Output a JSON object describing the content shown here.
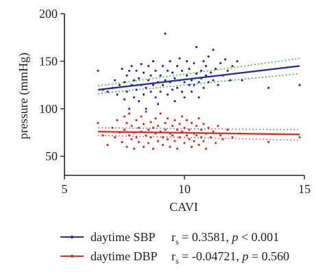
{
  "chart_data": {
    "type": "scatter",
    "xlabel": "CAVI",
    "ylabel": "pressure (mmHg)",
    "xlim": [
      5,
      15
    ],
    "ylim": [
      30,
      200
    ],
    "x_ticks": [
      "5",
      "10",
      "15"
    ],
    "y_ticks": [
      "50",
      "100",
      "150",
      "200"
    ],
    "x_tick_values": [
      5,
      10,
      15
    ],
    "y_tick_values": [
      50,
      100,
      150,
      200
    ],
    "grid": false,
    "legend_position": "bottom",
    "series": [
      {
        "name": "daytime SBP",
        "color": "#2b2ba0",
        "stat_r": "r",
        "stat_sub": "s",
        "stat_value": " = 0.3581, ",
        "stat_p": "p",
        "stat_p_value": " < 0.001",
        "fit": {
          "x": [
            6.4,
            14.8
          ],
          "y": [
            120,
            145
          ]
        },
        "ci_upper": {
          "x": [
            6.4,
            14.8
          ],
          "y": [
            124,
            153
          ]
        },
        "ci_lower": {
          "x": [
            6.4,
            14.8
          ],
          "y": [
            116,
            137
          ]
        },
        "points": [
          [
            6.4,
            140
          ],
          [
            6.6,
            120
          ],
          [
            6.8,
            118
          ],
          [
            7.0,
            122
          ],
          [
            7.1,
            130
          ],
          [
            7.2,
            115
          ],
          [
            7.3,
            125
          ],
          [
            7.4,
            142
          ],
          [
            7.5,
            110
          ],
          [
            7.5,
            128
          ],
          [
            7.6,
            135
          ],
          [
            7.6,
            118
          ],
          [
            7.7,
            140
          ],
          [
            7.7,
            100
          ],
          [
            7.8,
            125
          ],
          [
            7.8,
            145
          ],
          [
            7.9,
            112
          ],
          [
            7.9,
            130
          ],
          [
            8.0,
            120
          ],
          [
            8.0,
            140
          ],
          [
            8.1,
            108
          ],
          [
            8.1,
            132
          ],
          [
            8.2,
            125
          ],
          [
            8.2,
            147
          ],
          [
            8.3,
            115
          ],
          [
            8.3,
            138
          ],
          [
            8.4,
            122
          ],
          [
            8.4,
            100
          ],
          [
            8.5,
            130
          ],
          [
            8.5,
            145
          ],
          [
            8.6,
            118
          ],
          [
            8.6,
            135
          ],
          [
            8.7,
            125
          ],
          [
            8.7,
            150
          ],
          [
            8.8,
            112
          ],
          [
            8.8,
            140
          ],
          [
            8.9,
            128
          ],
          [
            8.9,
            105
          ],
          [
            9.0,
            135
          ],
          [
            9.0,
            118
          ],
          [
            9.1,
            145
          ],
          [
            9.1,
            125
          ],
          [
            9.2,
            179
          ],
          [
            9.2,
            130
          ],
          [
            9.3,
            140
          ],
          [
            9.3,
            115
          ],
          [
            9.4,
            128
          ],
          [
            9.4,
            150
          ],
          [
            9.5,
            120
          ],
          [
            9.5,
            138
          ],
          [
            9.6,
            108
          ],
          [
            9.6,
            132
          ],
          [
            9.7,
            145
          ],
          [
            9.7,
            122
          ],
          [
            9.8,
            130
          ],
          [
            9.8,
            153
          ],
          [
            9.9,
            118
          ],
          [
            9.9,
            140
          ],
          [
            10.0,
            128
          ],
          [
            10.0,
            112
          ],
          [
            10.1,
            135
          ],
          [
            10.1,
            150
          ],
          [
            10.2,
            125
          ],
          [
            10.2,
            142
          ],
          [
            10.3,
            130
          ],
          [
            10.3,
            118
          ],
          [
            10.4,
            148
          ],
          [
            10.4,
            125
          ],
          [
            10.5,
            137
          ],
          [
            10.5,
            165
          ],
          [
            10.6,
            128
          ],
          [
            10.6,
            112
          ],
          [
            10.7,
            140
          ],
          [
            10.7,
            132
          ],
          [
            10.8,
            150
          ],
          [
            10.8,
            122
          ],
          [
            10.9,
            135
          ],
          [
            10.9,
            145
          ],
          [
            11.0,
            128
          ],
          [
            11.0,
            155
          ],
          [
            11.1,
            138
          ],
          [
            11.2,
            130
          ],
          [
            11.2,
            162
          ],
          [
            11.3,
            142
          ],
          [
            11.4,
            125
          ],
          [
            11.5,
            148
          ],
          [
            11.6,
            135
          ],
          [
            11.7,
            152
          ],
          [
            11.8,
            140
          ],
          [
            11.9,
            130
          ],
          [
            12.0,
            145
          ],
          [
            12.2,
            150
          ],
          [
            12.4,
            130
          ],
          [
            13.5,
            122
          ],
          [
            14.8,
            125
          ]
        ]
      },
      {
        "name": "daytime DBP",
        "color": "#d4331f",
        "stat_r": "r",
        "stat_sub": "s",
        "stat_value": " = -0.04721, ",
        "stat_p": "p",
        "stat_p_value": " = 0.560",
        "fit": {
          "x": [
            6.4,
            14.8
          ],
          "y": [
            76,
            73
          ]
        },
        "ci_upper": {
          "x": [
            6.4,
            14.8
          ],
          "y": [
            80,
            78
          ]
        },
        "ci_lower": {
          "x": [
            6.4,
            14.8
          ],
          "y": [
            72,
            67
          ]
        },
        "points": [
          [
            6.4,
            85
          ],
          [
            6.6,
            72
          ],
          [
            6.8,
            62
          ],
          [
            7.0,
            80
          ],
          [
            7.1,
            70
          ],
          [
            7.2,
            88
          ],
          [
            7.3,
            75
          ],
          [
            7.4,
            65
          ],
          [
            7.5,
            92
          ],
          [
            7.5,
            78
          ],
          [
            7.6,
            60
          ],
          [
            7.6,
            85
          ],
          [
            7.7,
            72
          ],
          [
            7.7,
            95
          ],
          [
            7.8,
            68
          ],
          [
            7.8,
            82
          ],
          [
            7.9,
            75
          ],
          [
            7.9,
            58
          ],
          [
            8.0,
            88
          ],
          [
            8.0,
            70
          ],
          [
            8.1,
            80
          ],
          [
            8.1,
            65
          ],
          [
            8.2,
            92
          ],
          [
            8.2,
            76
          ],
          [
            8.3,
            60
          ],
          [
            8.3,
            84
          ],
          [
            8.4,
            72
          ],
          [
            8.4,
            97
          ],
          [
            8.5,
            78
          ],
          [
            8.5,
            64
          ],
          [
            8.6,
            86
          ],
          [
            8.6,
            70
          ],
          [
            8.7,
            80
          ],
          [
            8.7,
            58
          ],
          [
            8.8,
            90
          ],
          [
            8.8,
            74
          ],
          [
            8.9,
            66
          ],
          [
            8.9,
            82
          ],
          [
            9.0,
            76
          ],
          [
            9.0,
            95
          ],
          [
            9.1,
            70
          ],
          [
            9.1,
            62
          ],
          [
            9.2,
            85
          ],
          [
            9.2,
            78
          ],
          [
            9.3,
            68
          ],
          [
            9.3,
            90
          ],
          [
            9.4,
            74
          ],
          [
            9.4,
            60
          ],
          [
            9.5,
            82
          ],
          [
            9.5,
            72
          ],
          [
            9.6,
            88
          ],
          [
            9.6,
            66
          ],
          [
            9.7,
            78
          ],
          [
            9.7,
            58
          ],
          [
            9.8,
            84
          ],
          [
            9.8,
            70
          ],
          [
            9.9,
            92
          ],
          [
            9.9,
            76
          ],
          [
            10.0,
            64
          ],
          [
            10.0,
            80
          ],
          [
            10.1,
            72
          ],
          [
            10.1,
            88
          ],
          [
            10.2,
            68
          ],
          [
            10.2,
            78
          ],
          [
            10.3,
            60
          ],
          [
            10.3,
            85
          ],
          [
            10.4,
            74
          ],
          [
            10.4,
            66
          ],
          [
            10.5,
            82
          ],
          [
            10.5,
            72
          ],
          [
            10.6,
            90
          ],
          [
            10.6,
            62
          ],
          [
            10.7,
            78
          ],
          [
            10.7,
            70
          ],
          [
            10.8,
            84
          ],
          [
            10.8,
            66
          ],
          [
            10.9,
            74
          ],
          [
            10.9,
            58
          ],
          [
            11.0,
            80
          ],
          [
            11.1,
            70
          ],
          [
            11.2,
            76
          ],
          [
            11.3,
            64
          ],
          [
            11.4,
            82
          ],
          [
            11.5,
            72
          ],
          [
            11.6,
            68
          ],
          [
            11.8,
            78
          ],
          [
            12.0,
            70
          ],
          [
            12.3,
            74
          ],
          [
            13.5,
            65
          ],
          [
            14.8,
            70
          ]
        ]
      }
    ]
  }
}
